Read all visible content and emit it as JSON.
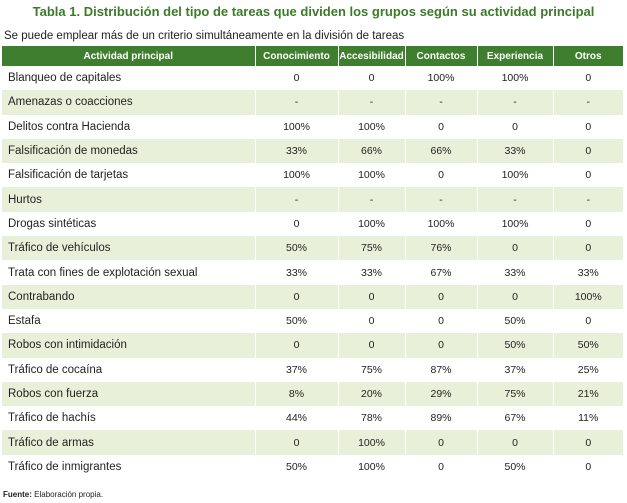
{
  "caption": {
    "label": "Tabla 1.",
    "title": "Distribución del tipo de tareas que dividen los grupos según su actividad principal"
  },
  "note": "Se puede emplear más de un criterio simultáneamente en la división de tareas",
  "columns": [
    "Actividad principal",
    "Conocimiento",
    "Accesibilidad",
    "Contactos",
    "Experiencia",
    "Otros"
  ],
  "rows": [
    [
      "Blanqueo de capitales",
      "0",
      "0",
      "100%",
      "100%",
      "0"
    ],
    [
      "Amenazas o coacciones",
      "-",
      "-",
      "-",
      "-",
      "-"
    ],
    [
      "Delitos contra Hacienda",
      "100%",
      "100%",
      "0",
      "0",
      "0"
    ],
    [
      "Falsificación de monedas",
      "33%",
      "66%",
      "66%",
      "33%",
      "0"
    ],
    [
      "Falsificación de tarjetas",
      "100%",
      "100%",
      "0",
      "100%",
      "0"
    ],
    [
      "Hurtos",
      "-",
      "-",
      "-",
      "-",
      "-"
    ],
    [
      "Drogas sintéticas",
      "0",
      "100%",
      "100%",
      "100%",
      "0"
    ],
    [
      "Tráfico de vehículos",
      "50%",
      "75%",
      "76%",
      "0",
      "0"
    ],
    [
      "Trata con fines de explotación sexual",
      "33%",
      "33%",
      "67%",
      "33%",
      "33%"
    ],
    [
      "Contrabando",
      "0",
      "0",
      "0",
      "0",
      "100%"
    ],
    [
      "Estafa",
      "50%",
      "0",
      "0",
      "50%",
      "0"
    ],
    [
      "Robos con intimidación",
      "0",
      "0",
      "0",
      "50%",
      "50%"
    ],
    [
      "Tráfico de cocaína",
      "37%",
      "75%",
      "87%",
      "37%",
      "25%"
    ],
    [
      "Robos con fuerza",
      "8%",
      "20%",
      "29%",
      "75%",
      "21%"
    ],
    [
      "Tráfico de hachís",
      "44%",
      "78%",
      "89%",
      "67%",
      "11%"
    ],
    [
      "Tráfico de armas",
      "0",
      "100%",
      "0",
      "0",
      "0"
    ],
    [
      "Tráfico de inmigrantes",
      "50%",
      "100%",
      "0",
      "50%",
      "0"
    ]
  ],
  "source": {
    "label": "Fuente:",
    "text": "Elaboración propia."
  }
}
